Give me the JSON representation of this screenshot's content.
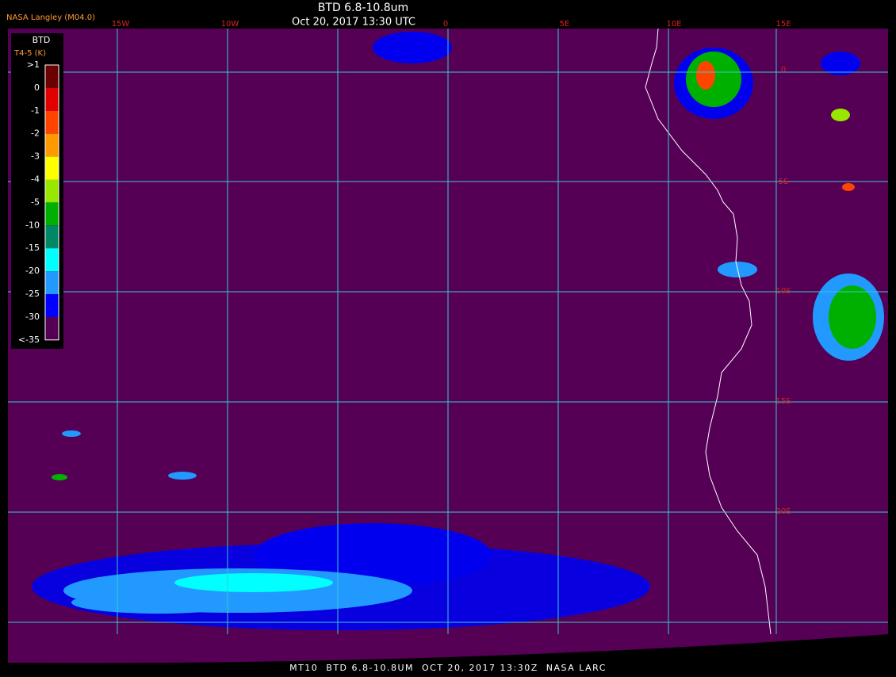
{
  "header": {
    "org": "NASA Langley (M04.0)",
    "title": "BTD 6.8-10.8um",
    "datetime": "Oct 20, 2017 13:30 UTC"
  },
  "legend": {
    "title": "BTD",
    "units": "T4-5 (K)",
    "labels": [
      ">1",
      "0",
      "-1",
      "-2",
      "-3",
      "-4",
      "-5",
      "-10",
      "-15",
      "-20",
      "-25",
      "-30",
      "<-35"
    ],
    "colors": [
      "#6b0000",
      "#e00000",
      "#ff4400",
      "#ff9900",
      "#ffff00",
      "#99e600",
      "#00b000",
      "#008866",
      "#00ffff",
      "#2299ff",
      "#0000ff",
      "#550055"
    ]
  },
  "grid": {
    "lon_labels": [
      "15W",
      "10W",
      "0",
      "5E",
      "10E",
      "15E"
    ],
    "lat_labels": [
      "0",
      "5S",
      "10S",
      "15S",
      "20S"
    ]
  },
  "footer": "MT10  BTD 6.8-10.8UM  OCT 20, 2017 13:30Z  NASA LARC"
}
